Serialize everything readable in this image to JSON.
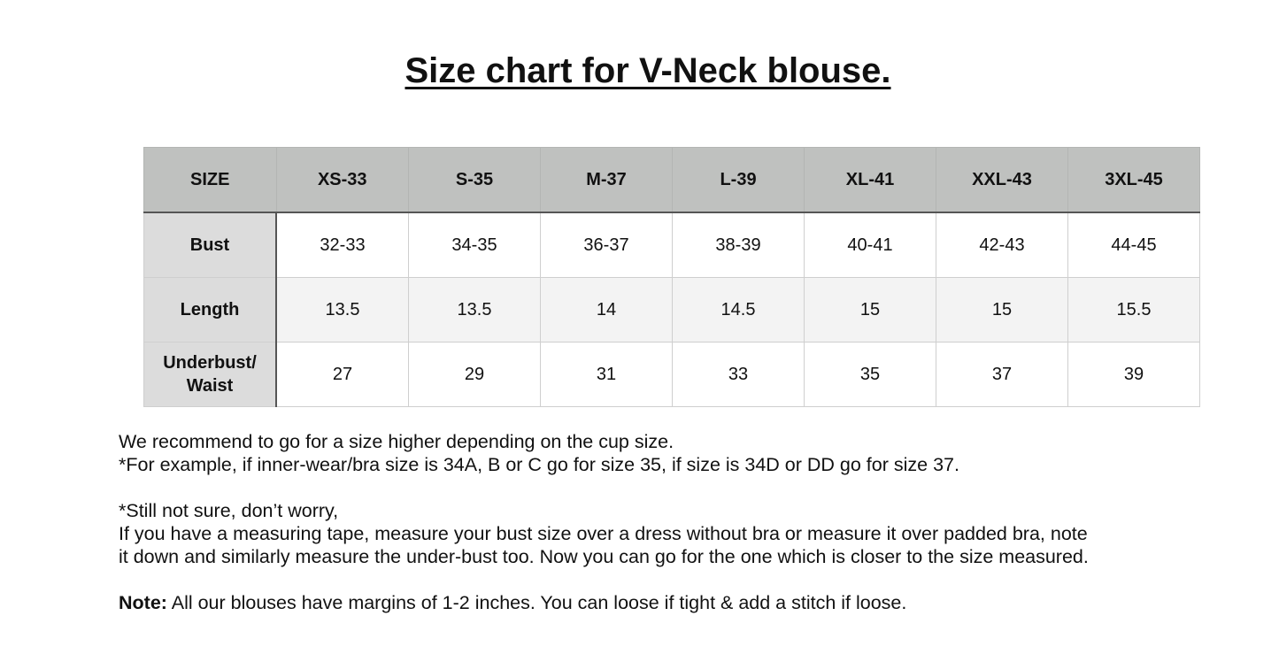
{
  "title": "Size chart for V-Neck blouse.",
  "table": {
    "headers": [
      "SIZE",
      "XS-33",
      "S-35",
      "M-37",
      "L-39",
      "XL-41",
      "XXL-43",
      "3XL-45"
    ],
    "rows": [
      {
        "label": "Bust",
        "values": [
          "32-33",
          "34-35",
          "36-37",
          "38-39",
          "40-41",
          "42-43",
          "44-45"
        ]
      },
      {
        "label": "Length",
        "values": [
          "13.5",
          "13.5",
          "14",
          "14.5",
          "15",
          "15",
          "15.5"
        ]
      },
      {
        "label": "Underbust/ Waist",
        "values": [
          "27",
          "29",
          "31",
          "33",
          "35",
          "37",
          "39"
        ]
      }
    ]
  },
  "notes": {
    "line1": "We recommend to go for a size higher depending on the cup size.",
    "line2": "*For example, if inner-wear/bra size is 34A, B or C go for size 35, if size is 34D or DD go for size 37.",
    "line3": "*Still not sure, don’t worry,",
    "line4": "If you have a measuring tape, measure your bust size over a dress without bra or measure it over padded bra, note",
    "line5": "it down and similarly measure the under-bust too. Now you can go for the one which is closer to the size measured.",
    "note_label": "Note:",
    "note_text": " All our blouses have margins of 1-2 inches. You can loose if tight & add a stitch if loose."
  },
  "colors": {
    "header_bg": "#bfc1bf",
    "row_header_bg": "#dcdcdc",
    "alt_row_bg": "#f3f3f3"
  }
}
